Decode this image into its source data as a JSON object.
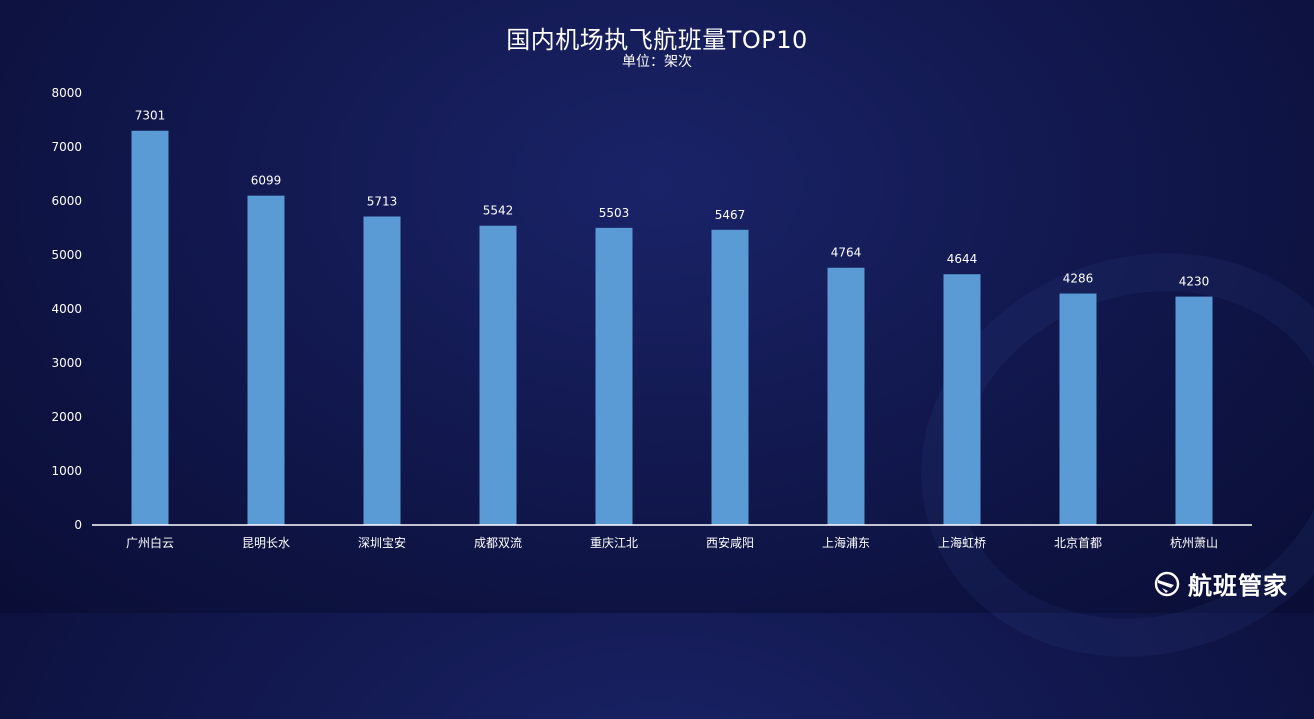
{
  "chart_data": {
    "type": "bar",
    "title": "国内机场执飞航班量TOP10",
    "subtitle": "单位：架次",
    "categories": [
      "广州白云",
      "昆明长水",
      "深圳宝安",
      "成都双流",
      "重庆江北",
      "西安咸阳",
      "上海浦东",
      "上海虹桥",
      "北京首都",
      "杭州萧山"
    ],
    "values": [
      7301,
      6099,
      5713,
      5542,
      5503,
      5467,
      4764,
      4644,
      4286,
      4230
    ],
    "ylim": [
      0,
      8000
    ],
    "yticks": [
      0,
      1000,
      2000,
      3000,
      4000,
      5000,
      6000,
      7000,
      8000
    ],
    "grid": false,
    "data_labels": true,
    "bar_color": "#5b9bd5"
  },
  "brand": {
    "name": "航班管家",
    "icon": "airplane-globe-icon"
  },
  "colors": {
    "background": "#0d1240",
    "text": "#ffffff",
    "bar": "#5b9bd5"
  }
}
